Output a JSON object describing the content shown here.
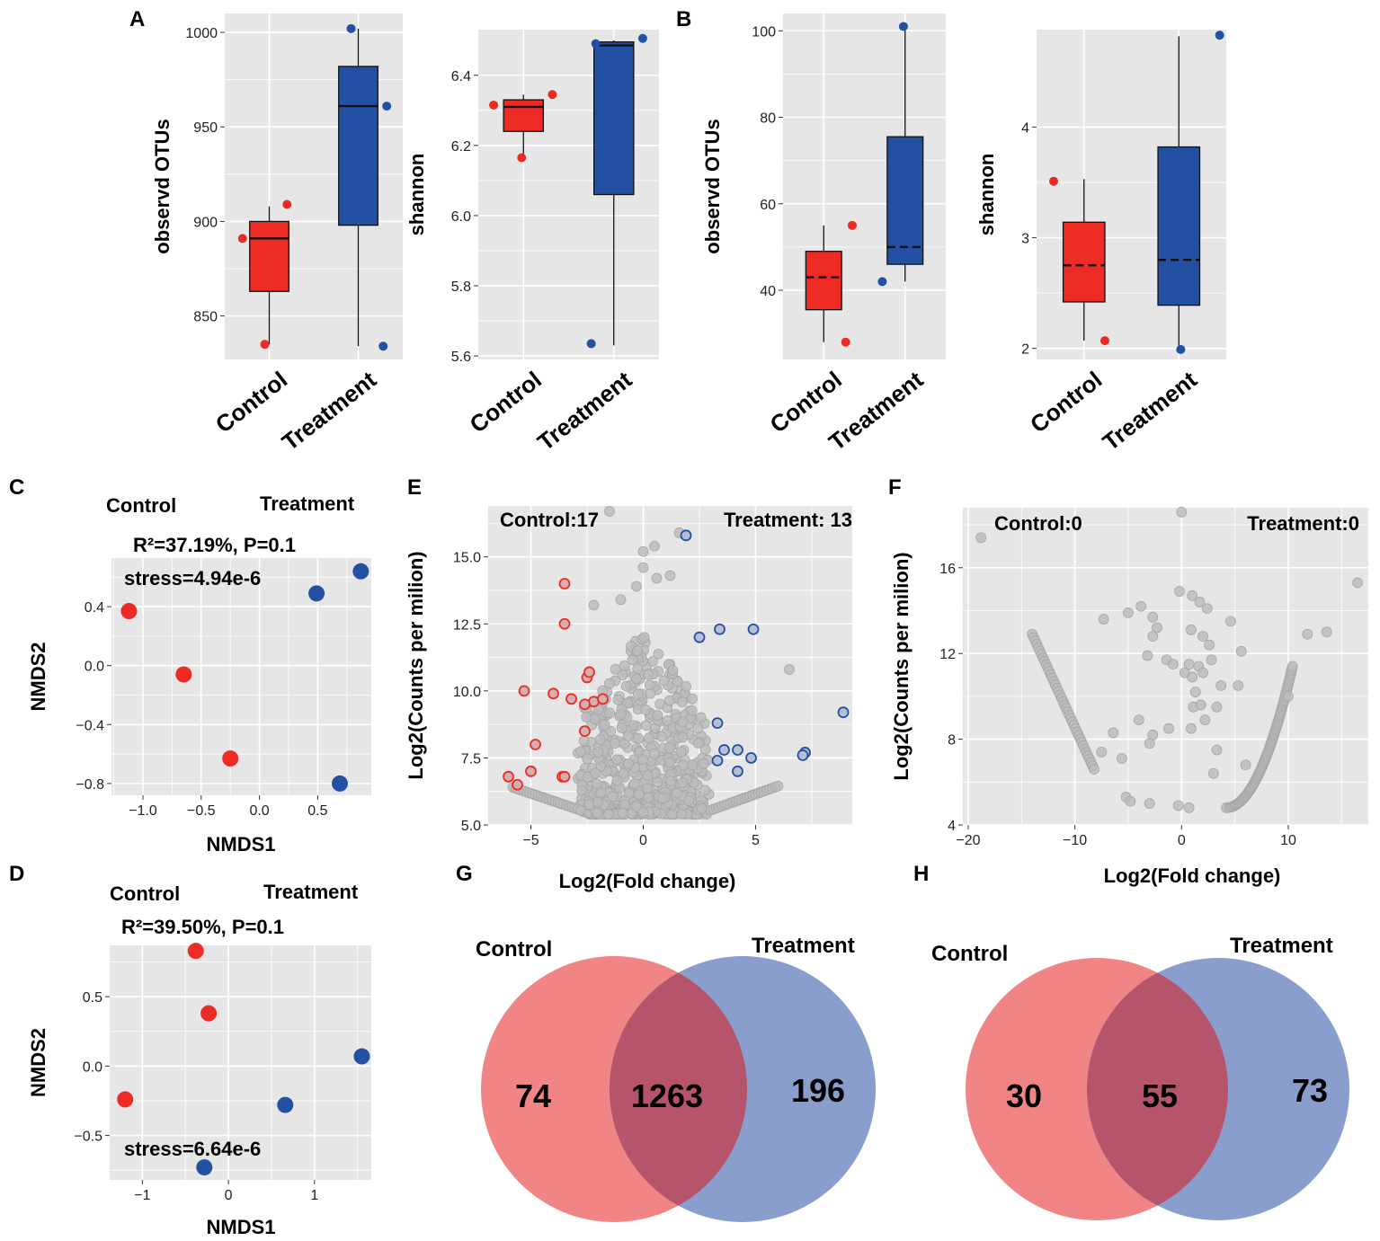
{
  "chart_data": [
    {
      "panel": "A",
      "type": "box",
      "name": "observd-otus-a",
      "ylabel": "observd OTUs",
      "ylim": [
        827,
        1010
      ],
      "yticks": [
        850,
        900,
        950,
        1000
      ],
      "ytick_labels": [
        "850",
        "900",
        "950",
        "1000"
      ],
      "categories": [
        "Control",
        "Treatment"
      ],
      "boxes": [
        {
          "group": "Control",
          "color": "#ee2a24",
          "whisker_low": 835,
          "q1": 863,
          "median": 891,
          "q3": 900,
          "whisker_high": 908,
          "median_style": "solid"
        },
        {
          "group": "Treatment",
          "color": "#2350a3",
          "whisker_low": 834,
          "q1": 898,
          "median": 961,
          "q3": 982,
          "whisker_high": 1002,
          "median_style": "solid"
        }
      ],
      "points": [
        {
          "group": "Control",
          "offset": -0.3,
          "y": 891
        },
        {
          "group": "Control",
          "offset": -0.05,
          "y": 835
        },
        {
          "group": "Control",
          "offset": 0.2,
          "y": 909
        },
        {
          "group": "Treatment",
          "offset": -0.08,
          "y": 1002
        },
        {
          "group": "Treatment",
          "offset": 0.32,
          "y": 961
        },
        {
          "group": "Treatment",
          "offset": 0.28,
          "y": 834
        }
      ]
    },
    {
      "panel": "A",
      "type": "box",
      "name": "shannon-a",
      "ylabel": "shannon",
      "ylim": [
        5.59,
        6.53
      ],
      "yticks": [
        5.6,
        5.8,
        6.0,
        6.2,
        6.4
      ],
      "ytick_labels": [
        "5.6",
        "5.8",
        "6.0",
        "6.2",
        "6.4"
      ],
      "categories": [
        "Control",
        "Treatment"
      ],
      "boxes": [
        {
          "group": "Control",
          "color": "#ee2a24",
          "whisker_low": 6.17,
          "q1": 6.24,
          "median": 6.31,
          "q3": 6.33,
          "whisker_high": 6.345,
          "median_style": "solid"
        },
        {
          "group": "Treatment",
          "color": "#2350a3",
          "whisker_low": 5.63,
          "q1": 6.06,
          "median": 6.485,
          "q3": 6.495,
          "whisker_high": 6.5,
          "median_style": "solid"
        }
      ],
      "points": [
        {
          "group": "Control",
          "offset": -0.33,
          "y": 6.315
        },
        {
          "group": "Control",
          "offset": -0.02,
          "y": 6.165
        },
        {
          "group": "Control",
          "offset": 0.32,
          "y": 6.345
        },
        {
          "group": "Treatment",
          "offset": -0.25,
          "y": 5.635
        },
        {
          "group": "Treatment",
          "offset": -0.2,
          "y": 6.49
        },
        {
          "group": "Treatment",
          "offset": 0.32,
          "y": 6.505
        }
      ]
    },
    {
      "panel": "B",
      "type": "box",
      "name": "observd-otus-b",
      "ylabel": "observd OTUs",
      "ylim": [
        24,
        104
      ],
      "yticks": [
        40,
        60,
        80,
        100
      ],
      "ytick_labels": [
        "40",
        "60",
        "80",
        "100"
      ],
      "categories": [
        "Control",
        "Treatment"
      ],
      "boxes": [
        {
          "group": "Control",
          "color": "#ee2a24",
          "whisker_low": 28,
          "q1": 35.5,
          "median": 43,
          "q3": 49,
          "whisker_high": 55,
          "median_style": "dashed"
        },
        {
          "group": "Treatment",
          "color": "#2350a3",
          "whisker_low": 42,
          "q1": 46,
          "median": 50,
          "q3": 75.5,
          "whisker_high": 101,
          "median_style": "dashed"
        }
      ],
      "points": [
        {
          "group": "Control",
          "offset": 0.27,
          "y": 28
        },
        {
          "group": "Control",
          "offset": 0.35,
          "y": 55
        },
        {
          "group": "Treatment",
          "offset": -0.28,
          "y": 42
        },
        {
          "group": "Treatment",
          "offset": -0.02,
          "y": 101
        }
      ]
    },
    {
      "panel": "B",
      "type": "box",
      "name": "shannon-b",
      "ylabel": "shannon",
      "ylim": [
        1.9,
        4.88
      ],
      "yticks": [
        2,
        3,
        4
      ],
      "ytick_labels": [
        "2",
        "3",
        "4"
      ],
      "categories": [
        "Control",
        "Treatment"
      ],
      "boxes": [
        {
          "group": "Control",
          "color": "#ee2a24",
          "whisker_low": 2.07,
          "q1": 2.42,
          "median": 2.75,
          "q3": 3.14,
          "whisker_high": 3.53,
          "median_style": "dashed"
        },
        {
          "group": "Treatment",
          "color": "#2350a3",
          "whisker_low": 2.0,
          "q1": 2.39,
          "median": 2.8,
          "q3": 3.82,
          "whisker_high": 4.82,
          "median_style": "dashed"
        }
      ],
      "points": [
        {
          "group": "Control",
          "offset": -0.32,
          "y": 3.51
        },
        {
          "group": "Control",
          "offset": 0.22,
          "y": 2.07
        },
        {
          "group": "Treatment",
          "offset": 0.02,
          "y": 1.99
        },
        {
          "group": "Treatment",
          "offset": 0.43,
          "y": 4.83
        }
      ]
    },
    {
      "panel": "C",
      "type": "scatter",
      "name": "nmds-c",
      "xlabel": "NMDS1",
      "ylabel": "NMDS2",
      "xlim": [
        -1.27,
        0.96
      ],
      "ylim": [
        -0.88,
        0.73
      ],
      "xticks": [
        -1.0,
        -0.5,
        0.0,
        0.5
      ],
      "xtick_labels": [
        "−1.0",
        "−0.5",
        "0.0",
        "0.5"
      ],
      "yticks": [
        -0.8,
        -0.4,
        0.0,
        0.4
      ],
      "ytick_labels": [
        "−0.8",
        "−0.4",
        "0.0",
        "0.4"
      ],
      "legend": [
        "Control",
        "Treatment"
      ],
      "stats": "R²=37.19%, P=0.1",
      "stress": "stress=4.94e-6",
      "points": [
        {
          "group": "Control",
          "x": -1.12,
          "y": 0.37
        },
        {
          "group": "Control",
          "x": -0.65,
          "y": -0.06
        },
        {
          "group": "Control",
          "x": -0.25,
          "y": -0.63
        },
        {
          "group": "Treatment",
          "x": 0.49,
          "y": 0.49
        },
        {
          "group": "Treatment",
          "x": 0.87,
          "y": 0.64
        },
        {
          "group": "Treatment",
          "x": 0.69,
          "y": -0.8
        }
      ]
    },
    {
      "panel": "D",
      "type": "scatter",
      "name": "nmds-d",
      "xlabel": "NMDS1",
      "ylabel": "NMDS2",
      "xlim": [
        -1.38,
        1.66
      ],
      "ylim": [
        -0.82,
        0.87
      ],
      "xticks": [
        -1,
        0,
        1
      ],
      "xtick_labels": [
        "−1",
        "0",
        "1"
      ],
      "yticks": [
        -0.5,
        0.0,
        0.5
      ],
      "ytick_labels": [
        "−0.5",
        "0.0",
        "0.5"
      ],
      "legend": [
        "Control",
        "Treatment"
      ],
      "stats": "R²=39.50%, P=0.1",
      "stress": "stress=6.64e-6",
      "points": [
        {
          "group": "Control",
          "x": -0.38,
          "y": 0.83
        },
        {
          "group": "Control",
          "x": -0.23,
          "y": 0.38
        },
        {
          "group": "Control",
          "x": -1.2,
          "y": -0.24
        },
        {
          "group": "Treatment",
          "x": 1.55,
          "y": 0.07
        },
        {
          "group": "Treatment",
          "x": 0.66,
          "y": -0.28
        },
        {
          "group": "Treatment",
          "x": -0.28,
          "y": -0.73
        }
      ]
    },
    {
      "panel": "E",
      "type": "scatter",
      "name": "volcano-e",
      "xlabel": "Log2(Fold change)",
      "ylabel": "Log2(Counts per milion)",
      "xlim": [
        -6.9,
        9.3
      ],
      "ylim": [
        5.0,
        16.9
      ],
      "xticks": [
        -5,
        0,
        5
      ],
      "xtick_labels": [
        "−5",
        "0",
        "5"
      ],
      "yticks": [
        5.0,
        7.5,
        10.0,
        12.5,
        15.0
      ],
      "ytick_labels": [
        "5.0",
        "7.5",
        "10.0",
        "12.5",
        "15.0"
      ],
      "annotations": {
        "left": "Control:17",
        "right": "Treatment: 13"
      },
      "red_points": [
        [
          -3.5,
          14.0
        ],
        [
          -3.5,
          12.5
        ],
        [
          -5.3,
          10.0
        ],
        [
          -4.0,
          9.9
        ],
        [
          -3.2,
          9.7
        ],
        [
          -2.5,
          10.5
        ],
        [
          -2.4,
          10.7
        ],
        [
          -2.2,
          9.6
        ],
        [
          -2.6,
          9.5
        ],
        [
          -1.8,
          9.7
        ],
        [
          -4.8,
          8.0
        ],
        [
          -2.6,
          8.5
        ],
        [
          -5.0,
          7.0
        ],
        [
          -3.6,
          6.8
        ],
        [
          -3.5,
          6.8
        ],
        [
          -6.0,
          6.8
        ],
        [
          -5.6,
          6.5
        ]
      ],
      "blue_points": [
        [
          1.9,
          15.8
        ],
        [
          2.5,
          12.0
        ],
        [
          3.4,
          12.3
        ],
        [
          4.9,
          12.3
        ],
        [
          3.3,
          8.8
        ],
        [
          3.6,
          7.8
        ],
        [
          4.2,
          7.8
        ],
        [
          3.3,
          7.4
        ],
        [
          4.8,
          7.5
        ],
        [
          4.2,
          7.0
        ],
        [
          7.2,
          7.7
        ],
        [
          8.9,
          9.2
        ],
        [
          7.1,
          7.6
        ]
      ],
      "grey_highlights": [
        [
          -1.5,
          16.7
        ],
        [
          0.0,
          15.2
        ],
        [
          0.5,
          15.4
        ],
        [
          1.6,
          15.9
        ],
        [
          0.0,
          14.6
        ],
        [
          -1.0,
          13.4
        ],
        [
          -2.2,
          13.2
        ],
        [
          6.5,
          10.8
        ],
        [
          0.6,
          14.2
        ],
        [
          1.2,
          14.3
        ],
        [
          -0.3,
          13.9
        ]
      ]
    },
    {
      "panel": "F",
      "type": "scatter",
      "name": "volcano-f",
      "xlabel": "Log2(Fold change)",
      "ylabel": "Log2(Counts per milion)",
      "xlim": [
        -20.5,
        17.5
      ],
      "ylim": [
        4.0,
        18.8
      ],
      "xticks": [
        -20,
        -10,
        0,
        10
      ],
      "xtick_labels": [
        "−20",
        "−10",
        "0",
        "10"
      ],
      "yticks": [
        4,
        8,
        12,
        16
      ],
      "ytick_labels": [
        "4",
        "8",
        "12",
        "16"
      ],
      "annotations": {
        "left": "Control:0",
        "right": "Treatment:0"
      },
      "scattered_points": [
        [
          -18.8,
          17.4
        ],
        [
          0.0,
          18.6
        ],
        [
          16.5,
          15.3
        ],
        [
          -5.0,
          13.9
        ],
        [
          -7.3,
          13.6
        ],
        [
          -3.8,
          14.2
        ],
        [
          -2.7,
          13.7
        ],
        [
          -2.3,
          13.2
        ],
        [
          -2.7,
          12.8
        ],
        [
          -3.2,
          11.9
        ],
        [
          -1.4,
          11.7
        ],
        [
          -0.2,
          14.9
        ],
        [
          1.0,
          14.7
        ],
        [
          1.7,
          14.4
        ],
        [
          2.4,
          14.1
        ],
        [
          0.9,
          13.1
        ],
        [
          2.0,
          12.8
        ],
        [
          2.6,
          12.4
        ],
        [
          0.3,
          11.1
        ],
        [
          1.0,
          10.9
        ],
        [
          -0.8,
          11.5
        ],
        [
          0.7,
          11.5
        ],
        [
          1.3,
          10.2
        ],
        [
          1.6,
          11.4
        ],
        [
          2.0,
          11.1
        ],
        [
          1.1,
          9.5
        ],
        [
          1.8,
          9.6
        ],
        [
          2.2,
          8.9
        ],
        [
          0.9,
          8.5
        ],
        [
          -1.2,
          8.5
        ],
        [
          -4.0,
          8.9
        ],
        [
          -2.7,
          8.2
        ],
        [
          -6.4,
          8.3
        ],
        [
          -7.5,
          7.4
        ],
        [
          -5.2,
          5.3
        ],
        [
          -4.8,
          5.1
        ],
        [
          -3.0,
          5.0
        ],
        [
          -0.3,
          4.9
        ],
        [
          0.7,
          4.8
        ],
        [
          3.0,
          6.4
        ],
        [
          3.3,
          7.5
        ],
        [
          3.3,
          9.5
        ],
        [
          3.7,
          10.5
        ],
        [
          2.8,
          11.7
        ],
        [
          4.6,
          13.5
        ],
        [
          5.3,
          10.5
        ],
        [
          5.6,
          12.1
        ],
        [
          6.0,
          6.8
        ],
        [
          10.0,
          10.0
        ],
        [
          11.8,
          12.9
        ],
        [
          13.6,
          13.0
        ],
        [
          -5.6,
          7.1
        ],
        [
          -3.0,
          7.8
        ]
      ],
      "left_curve": {
        "x_start": -14.0,
        "x_end": -8.2,
        "y_start": 12.9,
        "y_end": 6.6
      },
      "right_curve": {
        "x_start": 4.2,
        "x_end": 10.4,
        "y_start": 4.8,
        "y_end": 11.4
      }
    },
    {
      "panel": "G",
      "type": "venn",
      "name": "venn-g",
      "sets": [
        "Control",
        "Treatment"
      ],
      "values": {
        "only_left": "74",
        "both": "1263",
        "only_right": "196"
      }
    },
    {
      "panel": "H",
      "type": "venn",
      "name": "venn-h",
      "sets": [
        "Control",
        "Treatment"
      ],
      "values": {
        "only_left": "30",
        "both": "55",
        "only_right": "73"
      }
    }
  ],
  "panels": {
    "a": "A",
    "b": "B",
    "c": "C",
    "d": "D",
    "e": "E",
    "f": "F",
    "g": "G",
    "h": "H"
  },
  "groups": {
    "control": "Control",
    "treatment": "Treatment"
  },
  "colors": {
    "control": "#ee2a24",
    "treatment": "#2350a3",
    "panel_bg": "#e6e6e6",
    "grid": "#ffffff",
    "grey_point": "#bcbcbc",
    "venn_left": "#f07e7e",
    "venn_right": "#6f89c2"
  }
}
